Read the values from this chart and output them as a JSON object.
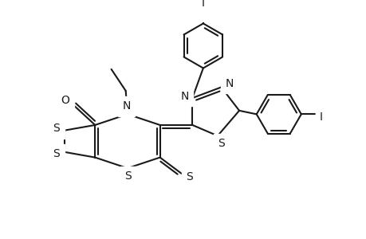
{
  "background_color": "#ffffff",
  "line_color": "#1a1a1a",
  "line_width": 1.5,
  "figsize": [
    4.6,
    3.0
  ],
  "dpi": 100,
  "xlim": [
    0,
    9.2
  ],
  "ylim": [
    0,
    6.0
  ]
}
